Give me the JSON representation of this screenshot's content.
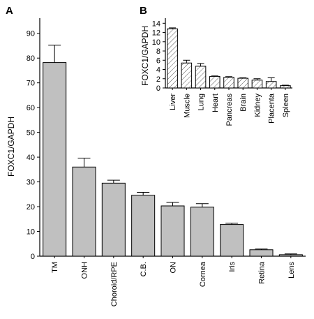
{
  "chart_data": [
    {
      "panel": "A",
      "type": "bar",
      "ylabel": "FOXC1/GAPDH",
      "ylim": [
        0,
        95
      ],
      "yticks": [
        0,
        10,
        20,
        30,
        40,
        50,
        60,
        70,
        80,
        90
      ],
      "categories": [
        "TM",
        "ONH",
        "Choroid/RPE",
        "C.B.",
        "ON",
        "Cornea",
        "Iris",
        "Retina",
        "Lens"
      ],
      "values": [
        78.2,
        36.0,
        29.5,
        24.6,
        20.3,
        19.8,
        12.8,
        2.6,
        0.6
      ],
      "errors": [
        7.0,
        3.6,
        1.2,
        1.2,
        1.4,
        1.4,
        0.5,
        0.3,
        0.3
      ],
      "bar_color": "#c0c0c0",
      "hatch": false
    },
    {
      "panel": "B",
      "type": "bar",
      "ylabel": "FOXC1/GAPDH",
      "ylim": [
        0,
        14.5
      ],
      "yticks": [
        0,
        2,
        4,
        6,
        8,
        10,
        12,
        14
      ],
      "categories": [
        "Liver",
        "Muscle",
        "Lung",
        "Heart",
        "Pancreas",
        "Brain",
        "Kidney",
        "Placenta",
        "Spleen"
      ],
      "values": [
        12.8,
        5.4,
        4.7,
        2.5,
        2.3,
        2.1,
        1.7,
        1.4,
        0.5
      ],
      "errors": [
        0.2,
        0.6,
        0.6,
        0.1,
        0.15,
        0.1,
        0.3,
        0.8,
        0.1
      ],
      "bar_color": "#ffffff",
      "hatch": true
    }
  ]
}
